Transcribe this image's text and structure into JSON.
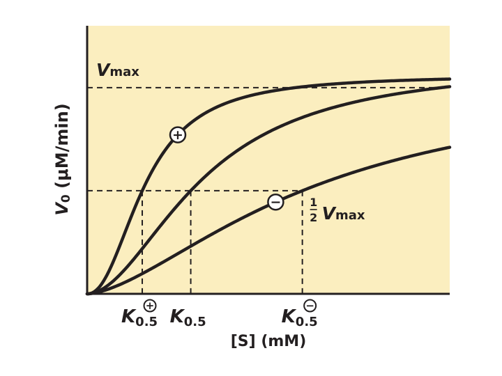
{
  "colors": {
    "plot_background": "#fbeebf",
    "curve": "#231f20",
    "reference_line": "#231f20"
  },
  "chart_data": {
    "type": "line",
    "xlabel": "[S] (mM)",
    "ylabel_main": "V",
    "ylabel_sub": "0",
    "ylabel_units": "(μM/min)",
    "xlim": [
      0,
      10
    ],
    "ylim": [
      0,
      1.3
    ],
    "vmax": {
      "value": 1.0,
      "label_main": "V",
      "label_sub": "max"
    },
    "half_vmax": {
      "value": 0.5,
      "label_num": "1",
      "label_den": "2",
      "label_main": "V",
      "label_sub": "max"
    },
    "series": [
      {
        "modulator": "positive",
        "marker_symbol": "+",
        "marker_x": 2.5,
        "k05": 1.6,
        "hill": 2.2,
        "asymptote": 1.06,
        "tick_main": "K",
        "tick_sub": "0.5",
        "tick_sup": "+"
      },
      {
        "modulator": "none",
        "k05": 3.2,
        "hill": 1.9,
        "asymptote": 1.12,
        "tick_main": "K",
        "tick_sub": "0.5"
      },
      {
        "modulator": "negative",
        "marker_symbol": "−",
        "marker_x": 5.2,
        "k05": 6.3,
        "hill": 1.6,
        "asymptote": 1.05,
        "tick_main": "K",
        "tick_sub": "0.5",
        "tick_sup": "−"
      }
    ]
  }
}
